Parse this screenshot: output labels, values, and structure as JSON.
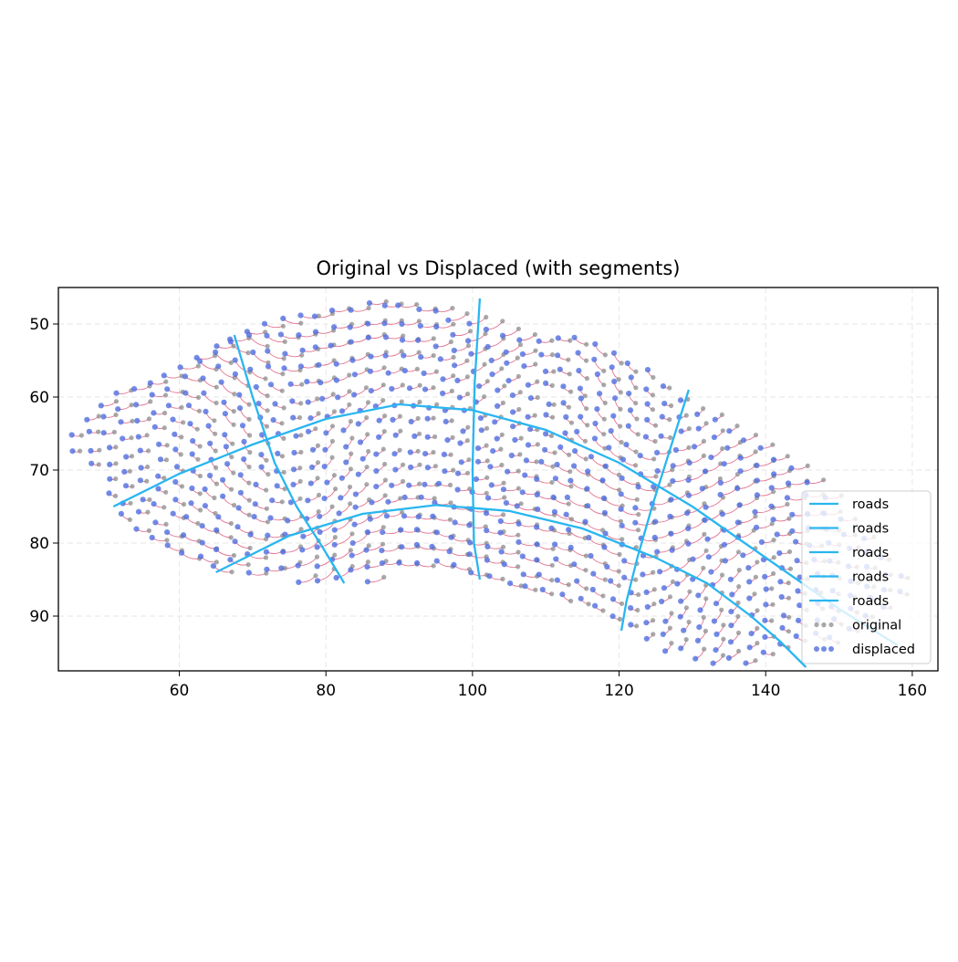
{
  "chart_data": {
    "type": "scatter",
    "title": "Original vs Displaced (with segments)",
    "xlabel": "",
    "ylabel": "",
    "xlim": [
      43.5,
      163.5
    ],
    "ylim": [
      97.5,
      45
    ],
    "y_inverted": true,
    "grid": true,
    "xticks": [
      60,
      80,
      100,
      120,
      140,
      160
    ],
    "yticks": [
      50,
      60,
      70,
      80,
      90
    ],
    "legend_position": "lower-right",
    "legend": [
      "roads",
      "roads",
      "roads",
      "roads",
      "roads",
      "original",
      "displaced"
    ],
    "colors": {
      "road": "#29b6f0",
      "original": "#8e8e8e",
      "displaced": "#4f6ee0",
      "segment": "#d9466b"
    },
    "roads": [
      {
        "name": "roads",
        "points": [
          [
            51,
            75
          ],
          [
            60,
            70.5
          ],
          [
            70,
            66.5
          ],
          [
            80,
            63
          ],
          [
            90,
            61
          ],
          [
            100,
            61.8
          ],
          [
            110,
            64.5
          ],
          [
            120,
            69
          ],
          [
            130,
            75
          ],
          [
            140,
            82
          ],
          [
            150,
            89
          ],
          [
            158,
            94
          ]
        ]
      },
      {
        "name": "roads",
        "points": [
          [
            65,
            84
          ],
          [
            75,
            79
          ],
          [
            85,
            76
          ],
          [
            95,
            74.8
          ],
          [
            105,
            75.6
          ],
          [
            115,
            78
          ],
          [
            125,
            82
          ],
          [
            132,
            85.5
          ],
          [
            138,
            90
          ],
          [
            142,
            93.5
          ],
          [
            145.5,
            97
          ]
        ]
      },
      {
        "name": "roads",
        "points": [
          [
            67.5,
            51.5
          ],
          [
            70,
            60
          ],
          [
            73,
            69
          ],
          [
            76,
            75
          ],
          [
            79.5,
            80.5
          ],
          [
            82.5,
            85.5
          ]
        ]
      },
      {
        "name": "roads",
        "points": [
          [
            101,
            46.5
          ],
          [
            100.3,
            58
          ],
          [
            100,
            70
          ],
          [
            100.2,
            80
          ],
          [
            101,
            85
          ]
        ]
      },
      {
        "name": "roads",
        "points": [
          [
            129.5,
            59
          ],
          [
            127,
            67
          ],
          [
            124.5,
            75
          ],
          [
            122.5,
            82
          ],
          [
            121,
            88
          ],
          [
            120.3,
            92
          ]
        ]
      }
    ],
    "series": [
      {
        "name": "original",
        "marker": "point"
      },
      {
        "name": "displaced",
        "marker": "point"
      }
    ],
    "outline": {
      "top": [
        [
          46,
          65
        ],
        [
          52,
          59
        ],
        [
          60,
          56.5
        ],
        [
          66,
          53
        ],
        [
          72,
          50.3
        ],
        [
          80,
          48.2
        ],
        [
          88,
          46.5
        ],
        [
          96,
          47.2
        ],
        [
          104,
          49
        ],
        [
          110,
          51.2
        ],
        [
          116,
          52.5
        ],
        [
          120,
          54.5
        ],
        [
          126,
          57.5
        ],
        [
          132,
          61
        ],
        [
          137,
          63.5
        ],
        [
          141,
          66
        ],
        [
          146,
          69
        ],
        [
          150,
          73
        ],
        [
          155,
          79
        ],
        [
          160,
          85
        ]
      ],
      "bottom": [
        [
          46,
          67
        ],
        [
          50,
          73
        ],
        [
          55,
          79
        ],
        [
          60,
          82.5
        ],
        [
          66,
          84.2
        ],
        [
          74,
          84.8
        ],
        [
          82,
          85
        ],
        [
          90,
          84.8
        ],
        [
          98,
          84.7
        ],
        [
          104,
          86
        ],
        [
          110,
          87.5
        ],
        [
          116,
          90
        ],
        [
          122,
          92.5
        ],
        [
          128,
          95
        ],
        [
          134,
          96.2
        ],
        [
          140,
          96.5
        ],
        [
          145,
          96
        ],
        [
          150,
          94.5
        ],
        [
          156,
          91.5
        ],
        [
          160,
          88
        ]
      ]
    }
  }
}
